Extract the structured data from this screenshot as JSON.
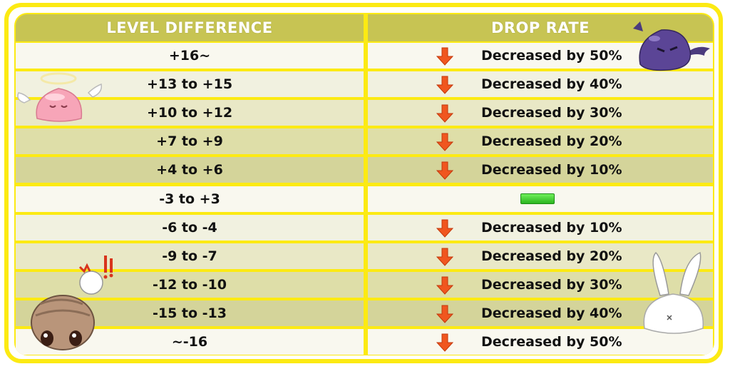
{
  "headers": {
    "level": "LEVEL DIFFERENCE",
    "rate": "DROP RATE"
  },
  "rows": [
    {
      "level": "+16~",
      "rate": "Decreased by 50%",
      "icon": "down-arrow-icon"
    },
    {
      "level": "+13 to +15",
      "rate": "Decreased by 40%",
      "icon": "down-arrow-icon"
    },
    {
      "level": "+10 to +12",
      "rate": "Decreased by 30%",
      "icon": "down-arrow-icon"
    },
    {
      "level": "+7 to +9",
      "rate": "Decreased by 20%",
      "icon": "down-arrow-icon"
    },
    {
      "level": "+4 to +6",
      "rate": "Decreased by 10%",
      "icon": "down-arrow-icon"
    },
    {
      "level": "-3 to +3",
      "rate": "",
      "icon": "green-bar-icon"
    },
    {
      "level": "-6 to -4",
      "rate": "Decreased by 10%",
      "icon": "down-arrow-icon"
    },
    {
      "level": "-9 to -7",
      "rate": "Decreased by 20%",
      "icon": "down-arrow-icon"
    },
    {
      "level": "-12 to -10",
      "rate": "Decreased by 30%",
      "icon": "down-arrow-icon"
    },
    {
      "level": "-15 to -13",
      "rate": "Decreased by 40%",
      "icon": "down-arrow-icon"
    },
    {
      "level": "~-16",
      "rate": "Decreased by 50%",
      "icon": "down-arrow-icon"
    }
  ],
  "colors": {
    "border": "#fcea13",
    "header_bg": "#c7c453",
    "arrow": "#f0561f",
    "row_bgs": [
      "#f9f8ef",
      "#f1f1e0",
      "#e9e8c6",
      "#dedea8",
      "#d4d49a",
      "#f9f8ef",
      "#f1f1e0",
      "#e9e8c6",
      "#dedea8",
      "#d4d49a",
      "#f9f8ef"
    ]
  },
  "decorations": [
    "angel-poring-icon",
    "deviling-icon",
    "peco-bug-icon",
    "lunatic-icon",
    "exclamation-icon"
  ]
}
